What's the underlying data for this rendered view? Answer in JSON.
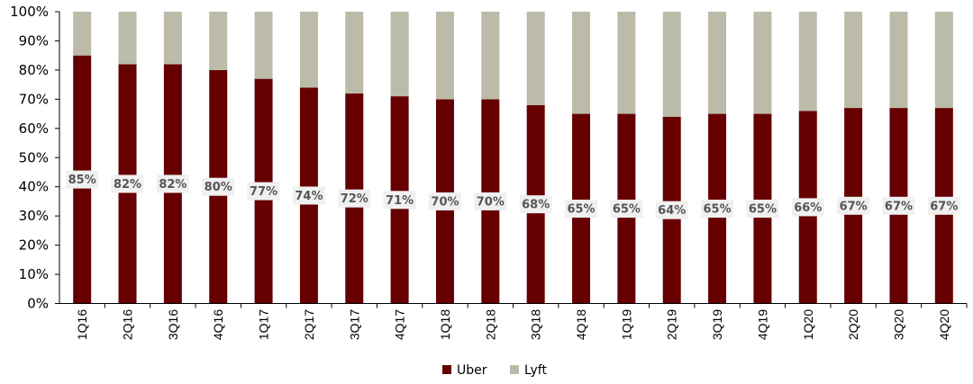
{
  "chart_data": {
    "type": "bar",
    "stacked": true,
    "percent_stacked": true,
    "title": "",
    "xlabel": "",
    "ylabel": "",
    "ylim": [
      0,
      100
    ],
    "y_ticks": [
      "0%",
      "10%",
      "20%",
      "30%",
      "40%",
      "50%",
      "60%",
      "70%",
      "80%",
      "90%",
      "100%"
    ],
    "categories": [
      "1Q16",
      "2Q16",
      "3Q16",
      "4Q16",
      "1Q17",
      "2Q17",
      "3Q17",
      "4Q17",
      "1Q18",
      "2Q18",
      "3Q18",
      "4Q18",
      "1Q19",
      "2Q19",
      "3Q19",
      "4Q19",
      "1Q20",
      "2Q20",
      "3Q20",
      "4Q20"
    ],
    "series": [
      {
        "name": "Uber",
        "color": "#660000",
        "values": [
          85,
          82,
          82,
          80,
          77,
          74,
          72,
          71,
          70,
          70,
          68,
          65,
          65,
          64,
          65,
          65,
          66,
          67,
          67,
          67
        ],
        "labels": [
          "85%",
          "82%",
          "82%",
          "80%",
          "77%",
          "74%",
          "72%",
          "71%",
          "70%",
          "70%",
          "68%",
          "65%",
          "65%",
          "64%",
          "65%",
          "65%",
          "66%",
          "67%",
          "67%",
          "67%"
        ]
      },
      {
        "name": "Lyft",
        "color": "#bcbaa8",
        "values": [
          15,
          18,
          18,
          20,
          23,
          26,
          28,
          29,
          30,
          30,
          32,
          35,
          35,
          36,
          35,
          35,
          34,
          33,
          33,
          33
        ]
      }
    ],
    "legend": {
      "position": "bottom-center",
      "entries": [
        "Uber",
        "Lyft"
      ]
    },
    "grid": false,
    "data_label_background": "#f0f0f0"
  }
}
